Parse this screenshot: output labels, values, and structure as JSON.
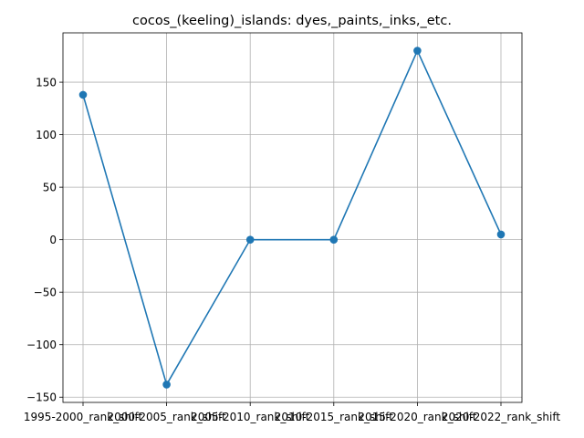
{
  "chart_data": {
    "type": "line",
    "title": "cocos_(keeling)_islands: dyes,_paints,_inks,_etc.",
    "xlabel": "",
    "ylabel": "",
    "categories": [
      "1995-2000_rank_shift",
      "2000-2005_rank_shift",
      "2005-2010_rank_shift",
      "2010-2015_rank_shift",
      "2015-2020_rank_shift",
      "2020-2022_rank_shift"
    ],
    "series": [
      {
        "values": [
          138,
          -138,
          0,
          0,
          180,
          5
        ],
        "color": "#1f77b4"
      }
    ],
    "ylim": [
      -155,
      197
    ],
    "yticks": [
      -150,
      -100,
      -50,
      0,
      50,
      100,
      150
    ],
    "grid": true,
    "legend": "none"
  }
}
